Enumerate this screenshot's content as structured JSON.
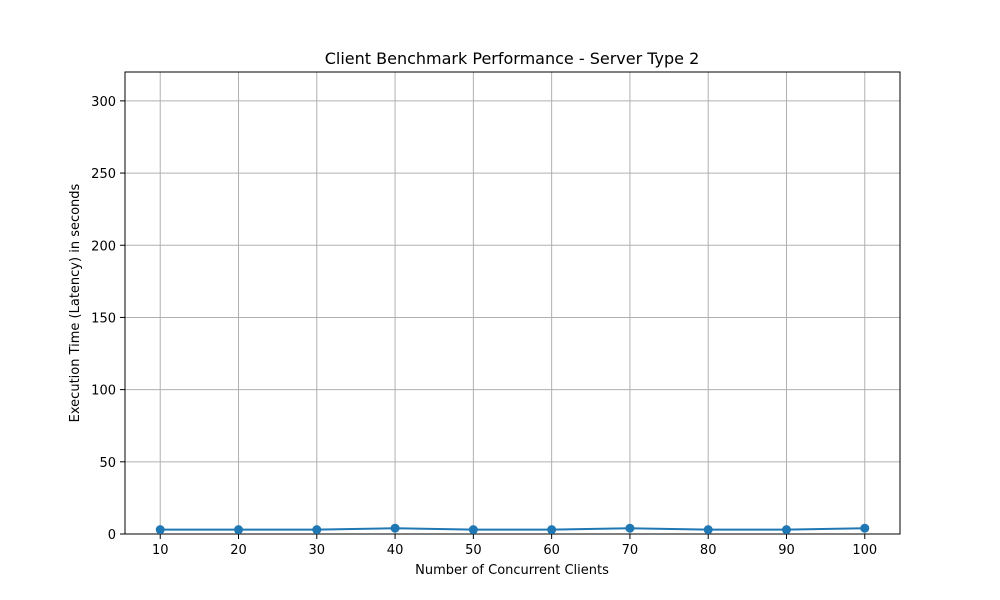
{
  "chart_data": {
    "type": "line",
    "title": "Client Benchmark Performance - Server Type 2",
    "xlabel": "Number of Concurrent Clients",
    "ylabel": "Execution Time (Latency) in seconds",
    "x": [
      10,
      20,
      30,
      40,
      50,
      60,
      70,
      80,
      90,
      100
    ],
    "series": [
      {
        "values": [
          3,
          3,
          3,
          4,
          3,
          3,
          4,
          3,
          3,
          4
        ],
        "color": "#1f77b4",
        "marker": "circle"
      }
    ],
    "xlim": [
      5.5,
      104.5
    ],
    "ylim": [
      0,
      320
    ],
    "xticks": [
      10,
      20,
      30,
      40,
      50,
      60,
      70,
      80,
      90,
      100
    ],
    "yticks": [
      0,
      50,
      100,
      150,
      200,
      250,
      300
    ],
    "grid": true,
    "grid_color": "#b0b0b0"
  }
}
